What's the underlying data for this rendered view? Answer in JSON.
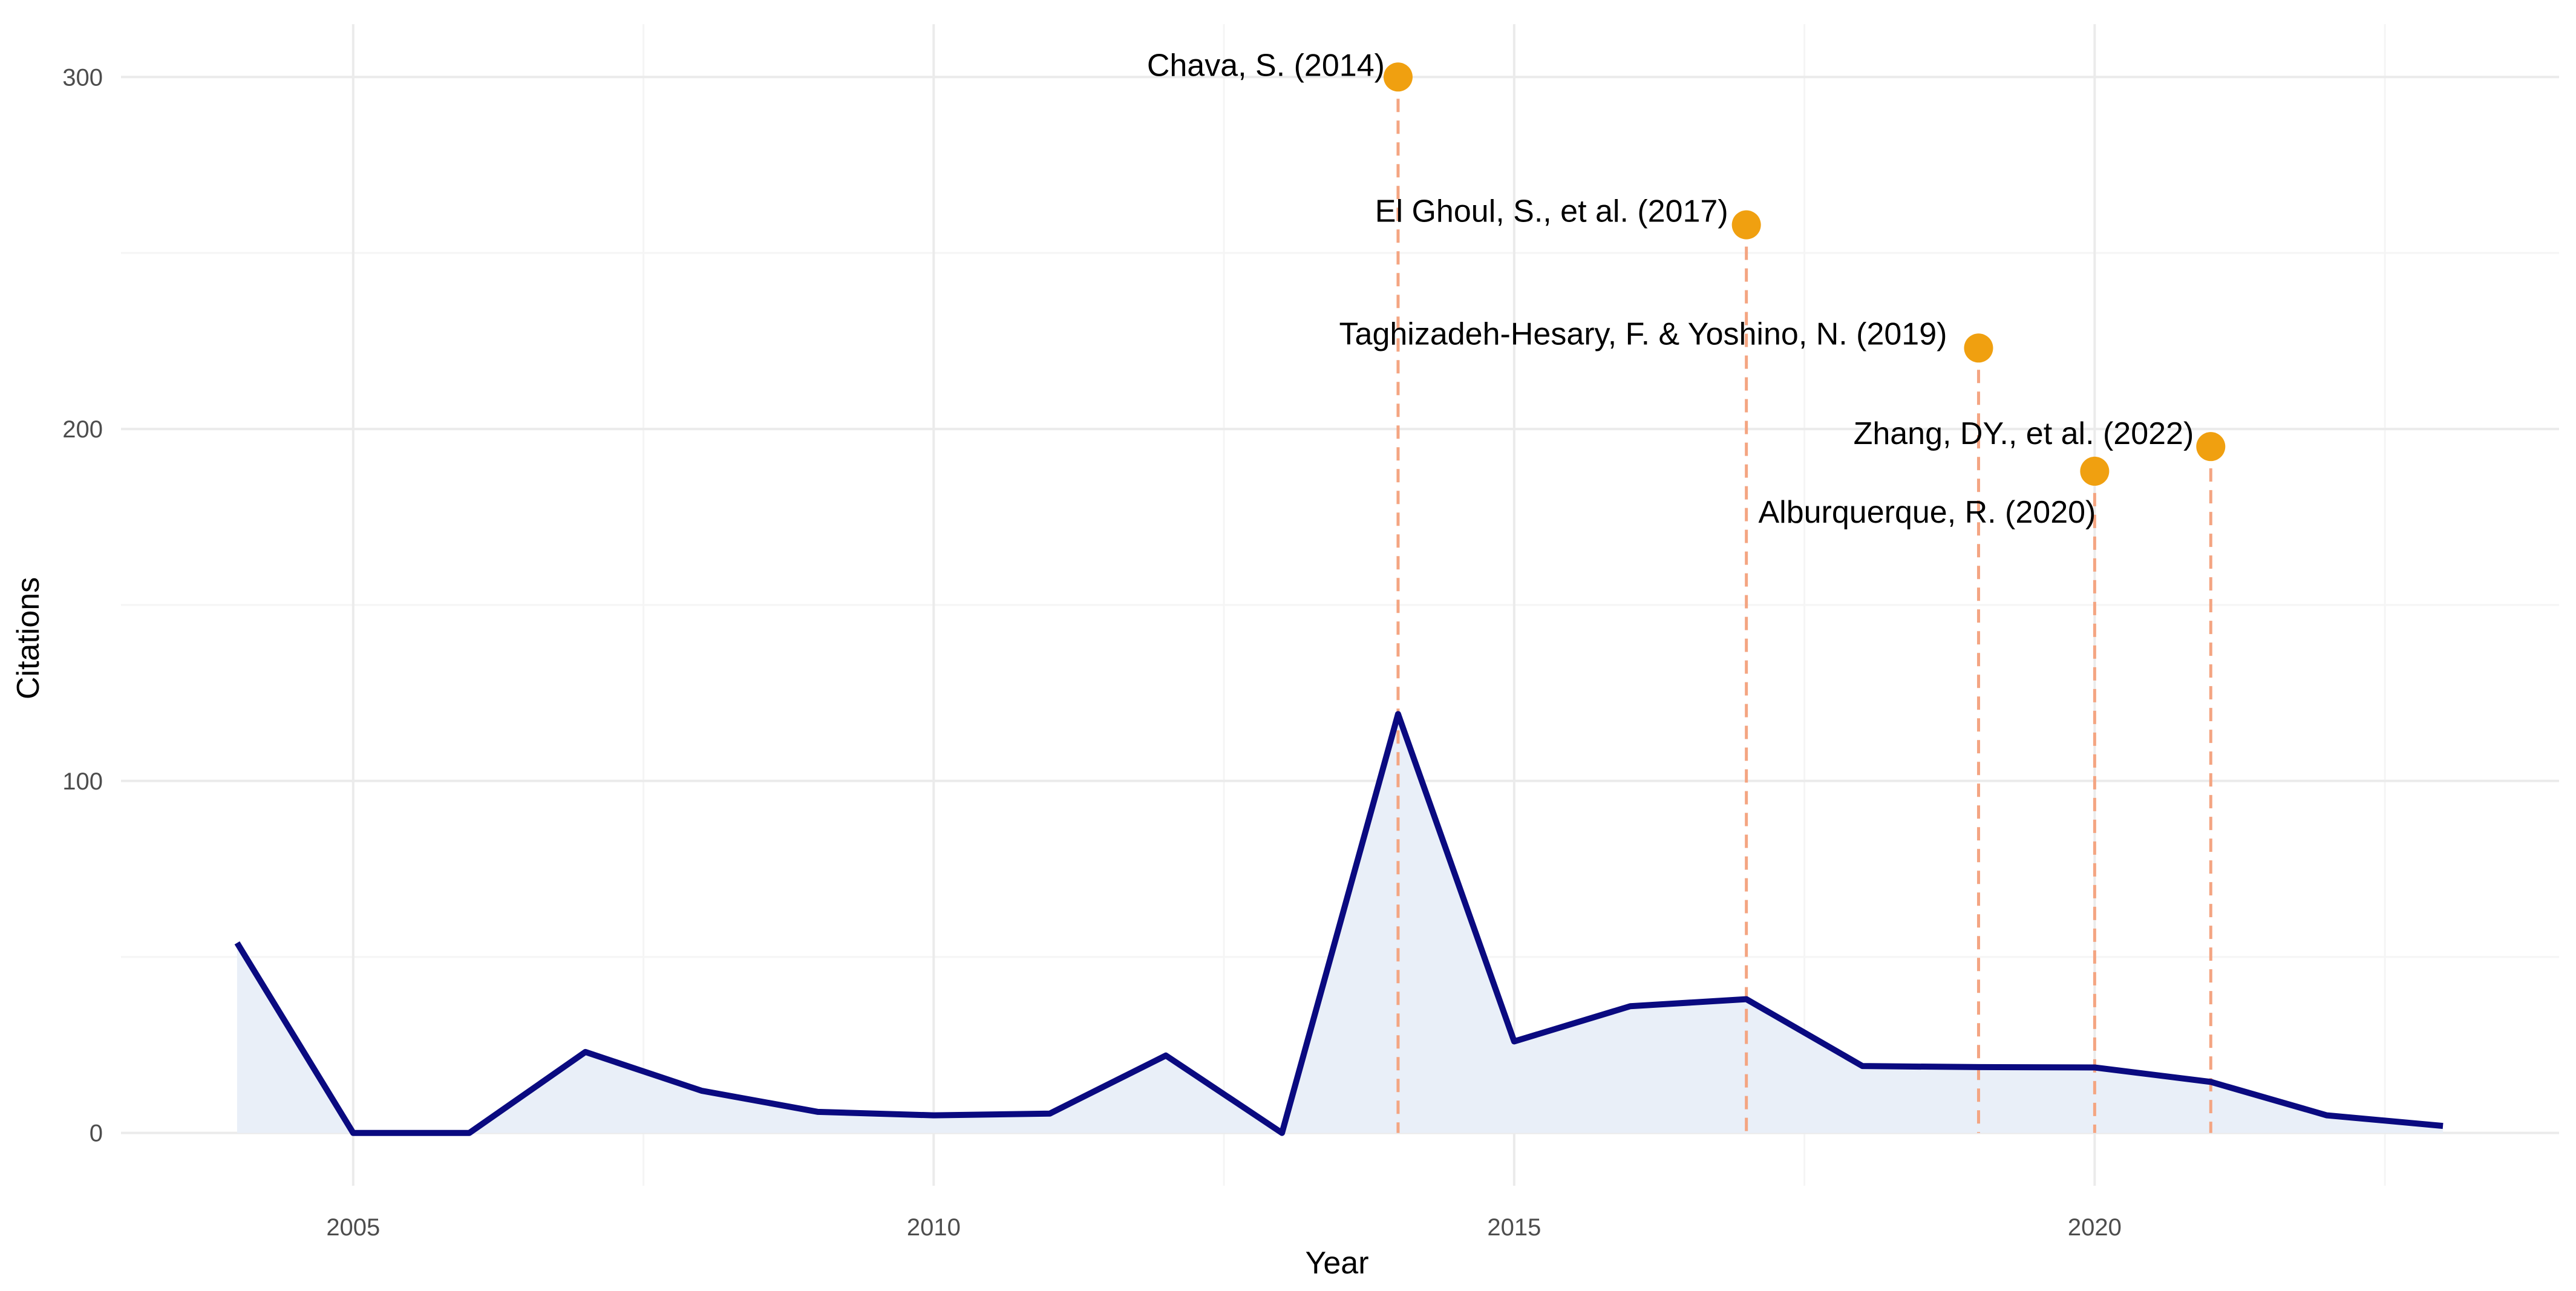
{
  "chart_data": {
    "type": "line",
    "title": "",
    "xlabel": "Year",
    "ylabel": "Citations",
    "xlim": [
      2003,
      2024
    ],
    "ylim": [
      -15,
      315
    ],
    "x_ticks": [
      2005,
      2010,
      2015,
      2020
    ],
    "y_ticks": [
      0,
      100,
      200,
      300
    ],
    "grid": true,
    "legend": "none",
    "series": [
      {
        "x": [
          2004,
          2005,
          2006,
          2007,
          2008,
          2009,
          2010,
          2011,
          2012,
          2013,
          2014,
          2015,
          2016,
          2017,
          2018,
          2019,
          2020,
          2021,
          2022,
          2023
        ],
        "values": [
          54,
          0,
          0,
          23,
          12,
          6,
          5,
          5.5,
          22,
          0,
          119,
          26,
          36,
          38,
          19,
          18.7,
          18.6,
          14.5,
          5,
          2
        ]
      }
    ],
    "highlights": [
      {
        "label": "Chava, S. (2014)",
        "x": 2014,
        "y": 300
      },
      {
        "label": "El Ghoul, S., et al. (2017)",
        "x": 2017,
        "y": 258
      },
      {
        "label": "Taghizadeh-Hesary, F. & Yoshino, N. (2019)",
        "x": 2019,
        "y": 223
      },
      {
        "label": "Alburquerque, R. (2020)",
        "x": 2020,
        "y": 188
      },
      {
        "label": "Zhang, DY., et al. (2022)",
        "x": 2021,
        "y": 195
      }
    ],
    "colors": {
      "line": "#0a0a80",
      "fill": "#e9eff8",
      "highlight_point": "#f0a010",
      "highlight_line": "#f4a582",
      "grid_major": "#ebebeb",
      "grid_minor": "#f5f5f5"
    }
  }
}
